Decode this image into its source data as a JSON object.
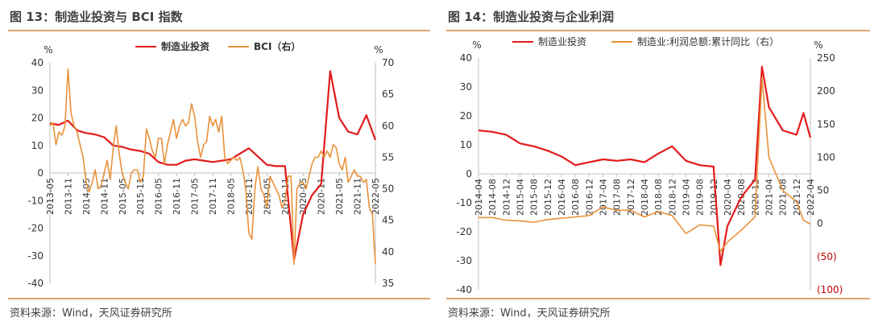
{
  "panels": [
    {
      "title": "图 13：制造业投资与 BCI 指数",
      "source": "资料来源：Wind，天风证券研究所"
    },
    {
      "title": "图 14：制造业投资与企业利润",
      "source": "资料来源：Wind，天风证券研究所"
    }
  ],
  "colors": {
    "red": "#e31b1b",
    "orange": "#e9913a",
    "rule": "#d9a46b",
    "text": "#404040"
  },
  "chart_data": [
    {
      "type": "line",
      "left_unit": "%",
      "right_unit": "%",
      "ylim_left": [
        -40,
        40
      ],
      "yticks_left": [
        "40",
        "30",
        "20",
        "10",
        "0",
        "-10",
        "-20",
        "-30",
        "-40"
      ],
      "ylim_right": [
        35,
        70
      ],
      "yticks_right": [
        "70",
        "65",
        "60",
        "55",
        "50",
        "45",
        "40",
        "35"
      ],
      "x_ticks": [
        "2013-05",
        "2013-11",
        "2014-05",
        "2014-11",
        "2015-05",
        "2015-11",
        "2016-05",
        "2016-11",
        "2017-05",
        "2017-11",
        "2018-05",
        "2018-11",
        "2019-05",
        "2019-11",
        "2020-05",
        "2020-11",
        "2021-05",
        "2021-11",
        "2022-05"
      ],
      "legend": [
        "制造业投资",
        "BCI（右）"
      ],
      "series": [
        {
          "name": "制造业投资",
          "axis": "left",
          "x": [
            "2013-05",
            "2013-08",
            "2013-11",
            "2014-02",
            "2014-05",
            "2014-08",
            "2014-11",
            "2015-02",
            "2015-05",
            "2015-08",
            "2015-11",
            "2016-02",
            "2016-05",
            "2016-08",
            "2016-11",
            "2017-02",
            "2017-05",
            "2017-08",
            "2017-11",
            "2018-02",
            "2018-05",
            "2018-08",
            "2018-11",
            "2019-02",
            "2019-05",
            "2019-08",
            "2019-11",
            "2020-02",
            "2020-05",
            "2020-08",
            "2020-11",
            "2021-02",
            "2021-05",
            "2021-08",
            "2021-11",
            "2022-02",
            "2022-05"
          ],
          "values": [
            18,
            17.5,
            19,
            15.5,
            14.5,
            14,
            13,
            10,
            9.5,
            8.5,
            8,
            7,
            4,
            3,
            3,
            4.5,
            5,
            4.5,
            4,
            4.5,
            5,
            7,
            9,
            6,
            3,
            2.5,
            2.5,
            -31.5,
            -15,
            -8,
            -4,
            37,
            20,
            15,
            14,
            21,
            12
          ]
        },
        {
          "name": "BCI（右）",
          "axis": "right",
          "x": [
            "2013-05",
            "2013-06",
            "2013-07",
            "2013-08",
            "2013-09",
            "2013-10",
            "2013-11",
            "2013-12",
            "2014-01",
            "2014-02",
            "2014-03",
            "2014-04",
            "2014-05",
            "2014-06",
            "2014-07",
            "2014-08",
            "2014-09",
            "2014-10",
            "2014-11",
            "2014-12",
            "2015-01",
            "2015-02",
            "2015-03",
            "2015-04",
            "2015-05",
            "2015-06",
            "2015-07",
            "2015-08",
            "2015-09",
            "2015-10",
            "2015-11",
            "2015-12",
            "2016-01",
            "2016-02",
            "2016-03",
            "2016-04",
            "2016-05",
            "2016-06",
            "2016-07",
            "2016-08",
            "2016-09",
            "2016-10",
            "2016-11",
            "2016-12",
            "2017-01",
            "2017-02",
            "2017-03",
            "2017-04",
            "2017-05",
            "2017-06",
            "2017-07",
            "2017-08",
            "2017-09",
            "2017-10",
            "2017-11",
            "2017-12",
            "2018-01",
            "2018-02",
            "2018-03",
            "2018-04",
            "2018-05",
            "2018-06",
            "2018-07",
            "2018-08",
            "2018-09",
            "2018-10",
            "2018-11",
            "2018-12",
            "2019-01",
            "2019-02",
            "2019-03",
            "2019-04",
            "2019-05",
            "2019-06",
            "2019-07",
            "2019-08",
            "2019-09",
            "2019-10",
            "2019-11",
            "2019-12",
            "2020-01",
            "2020-02",
            "2020-03",
            "2020-04",
            "2020-05",
            "2020-06",
            "2020-07",
            "2020-08",
            "2020-09",
            "2020-10",
            "2020-11",
            "2020-12",
            "2021-01",
            "2021-02",
            "2021-03",
            "2021-04",
            "2021-05",
            "2021-06",
            "2021-07",
            "2021-08",
            "2021-09",
            "2021-10",
            "2021-11",
            "2021-12",
            "2022-01",
            "2022-02",
            "2022-03",
            "2022-04",
            "2022-05"
          ],
          "values": [
            60,
            60.5,
            57,
            59,
            58.5,
            60,
            69,
            62,
            60,
            59,
            57,
            55,
            51,
            49.5,
            51,
            53,
            50,
            50.5,
            52.5,
            54.5,
            51.5,
            56.5,
            60,
            55.5,
            52.5,
            51,
            50,
            52.5,
            53,
            53,
            51,
            52,
            59.5,
            58,
            56,
            55,
            58,
            58,
            54,
            57,
            59,
            61,
            58,
            60,
            61,
            60,
            60.5,
            63.5,
            61.5,
            57.5,
            55,
            57,
            57.5,
            61.5,
            60,
            61,
            59,
            61.5,
            55,
            54,
            54.5,
            55,
            54.5,
            55,
            53,
            50,
            43,
            42,
            50,
            53.5,
            50,
            49,
            47,
            52,
            51,
            50,
            49,
            47,
            48,
            52,
            52,
            38,
            50,
            51,
            51,
            50,
            52,
            54,
            55,
            55,
            56,
            55,
            56,
            55,
            57,
            56.5,
            54,
            53,
            55,
            51,
            52,
            53,
            52,
            52,
            51,
            51.5,
            47,
            46,
            38
          ]
        }
      ]
    },
    {
      "type": "line",
      "left_unit": "%",
      "right_unit": "%",
      "ylim_left": [
        -40,
        40
      ],
      "yticks_left": [
        "40",
        "30",
        "20",
        "10",
        "0",
        "-10",
        "-20",
        "-30",
        "-40"
      ],
      "ylim_right": [
        -100,
        250
      ],
      "yticks_right": [
        "250",
        "200",
        "150",
        "100",
        "50",
        "0",
        "(50)",
        "(100)"
      ],
      "x_ticks": [
        "2014-04",
        "2014-08",
        "2014-12",
        "2015-04",
        "2015-08",
        "2015-12",
        "2016-04",
        "2016-08",
        "2016-12",
        "2017-04",
        "2017-08",
        "2017-12",
        "2018-04",
        "2018-08",
        "2018-12",
        "2019-04",
        "2019-08",
        "2019-12",
        "2020-04",
        "2020-08",
        "2020-12",
        "2021-04",
        "2021-08",
        "2021-12",
        "2022-04"
      ],
      "legend": [
        "制造业投资",
        "制造业:利润总额:累计同比（右）"
      ],
      "series": [
        {
          "name": "制造业投资",
          "axis": "left",
          "x": [
            "2014-04",
            "2014-08",
            "2014-12",
            "2015-04",
            "2015-08",
            "2015-12",
            "2016-04",
            "2016-08",
            "2016-12",
            "2017-04",
            "2017-08",
            "2017-12",
            "2018-04",
            "2018-08",
            "2018-12",
            "2019-04",
            "2019-08",
            "2019-12",
            "2020-02",
            "2020-04",
            "2020-08",
            "2020-12",
            "2021-02",
            "2021-04",
            "2021-08",
            "2021-12",
            "2022-02",
            "2022-04"
          ],
          "values": [
            15,
            14.5,
            13.5,
            10.5,
            9.5,
            8,
            6,
            3,
            4,
            5,
            4.5,
            5,
            4,
            7,
            9.5,
            4.5,
            3,
            2.5,
            -31.5,
            -18,
            -8,
            -2,
            37,
            23,
            15,
            13.5,
            21,
            12.5
          ]
        },
        {
          "name": "制造业:利润总额:累计同比（右）",
          "axis": "right",
          "x": [
            "2014-04",
            "2014-08",
            "2014-12",
            "2015-04",
            "2015-08",
            "2015-12",
            "2016-04",
            "2016-08",
            "2016-12",
            "2017-04",
            "2017-08",
            "2017-12",
            "2018-04",
            "2018-08",
            "2018-12",
            "2019-04",
            "2019-08",
            "2019-12",
            "2020-02",
            "2020-04",
            "2020-08",
            "2020-12",
            "2021-02",
            "2021-04",
            "2021-08",
            "2021-12",
            "2022-02",
            "2022-04"
          ],
          "values": [
            9,
            9,
            5,
            4,
            2,
            6,
            8,
            10,
            12,
            25,
            20,
            20,
            10,
            18,
            12,
            -15,
            -2,
            -4,
            -42,
            -28,
            -10,
            10,
            220,
            100,
            50,
            33,
            5,
            -1
          ]
        }
      ]
    }
  ]
}
